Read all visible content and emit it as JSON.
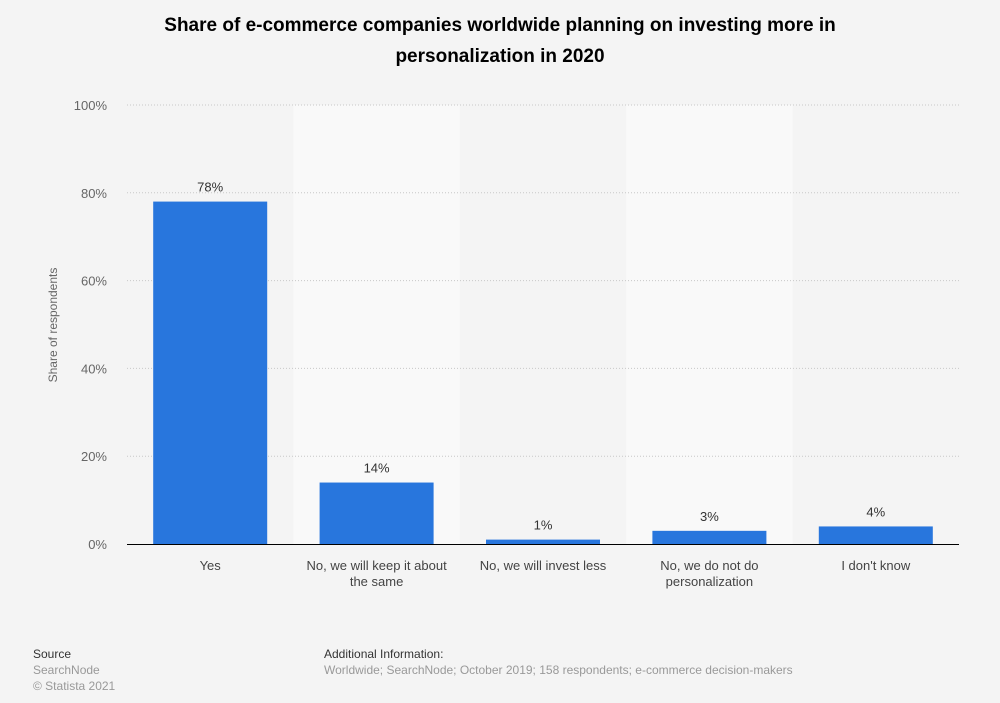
{
  "chart_data": {
    "type": "bar",
    "title": "Share of e-commerce companies worldwide planning on investing more in personalization in 2020",
    "xlabel": "",
    "ylabel": "Share of respondents",
    "ylim": [
      0,
      100
    ],
    "yticks": [
      "0%",
      "20%",
      "40%",
      "60%",
      "80%",
      "100%"
    ],
    "categories": [
      "Yes",
      "No, we will keep it about the same",
      "No, we will invest less",
      "No, we do not do personalization",
      "I don't know"
    ],
    "category_label_lines": [
      [
        "Yes"
      ],
      [
        "No, we will keep it about",
        "the same"
      ],
      [
        "No, we will invest less"
      ],
      [
        "No, we do not do",
        "personalization"
      ],
      [
        "I don't know"
      ]
    ],
    "values": [
      78,
      14,
      1,
      3,
      4
    ],
    "data_labels": [
      "78%",
      "14%",
      "1%",
      "3%",
      "4%"
    ],
    "grid": true,
    "bar_color": "#2876dd"
  },
  "footer": {
    "source_heading": "Source",
    "source": "SearchNode",
    "copyright": "© Statista 2021",
    "info_heading": "Additional Information:",
    "info": "Worldwide; SearchNode; October 2019; 158 respondents; e-commerce decision-makers"
  }
}
